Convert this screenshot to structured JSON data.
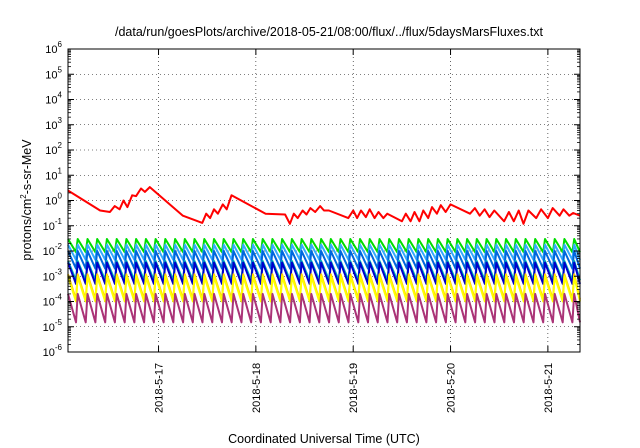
{
  "chart_data": {
    "type": "line",
    "title": "/data/run/goesPlots/archive/2018-05-21/08:00/flux/../flux/5daysMarsFluxes.txt",
    "xlabel": "Coordinated Universal Time (UTC)",
    "ylabel": {
      "base": "protons/cm",
      "sup": "2",
      "rest": "-s-sr-MeV"
    },
    "yscale": "log",
    "ylim": [
      1e-06,
      1000000.0
    ],
    "y_ticks": [
      {
        "base": "10",
        "exp": "-6",
        "value": 1e-06
      },
      {
        "base": "10",
        "exp": "-5",
        "value": 1e-05
      },
      {
        "base": "10",
        "exp": "-4",
        "value": 0.0001
      },
      {
        "base": "10",
        "exp": "-3",
        "value": 0.001
      },
      {
        "base": "10",
        "exp": "-2",
        "value": 0.01
      },
      {
        "base": "10",
        "exp": "-1",
        "value": 0.1
      },
      {
        "base": "10",
        "exp": "0",
        "value": 1
      },
      {
        "base": "10",
        "exp": "1",
        "value": 10.0
      },
      {
        "base": "10",
        "exp": "2",
        "value": 100.0
      },
      {
        "base": "10",
        "exp": "3",
        "value": 1000.0
      },
      {
        "base": "10",
        "exp": "4",
        "value": 10000.0
      },
      {
        "base": "10",
        "exp": "5",
        "value": 100000.0
      },
      {
        "base": "10",
        "exp": "6",
        "value": 1000000.0
      }
    ],
    "xlim_days": [
      16.07,
      21.33
    ],
    "x_ticks": [
      {
        "label": "2018-5-17",
        "day": 17
      },
      {
        "label": "2018-5-18",
        "day": 18
      },
      {
        "label": "2018-5-19",
        "day": 19
      },
      {
        "label": "2018-5-20",
        "day": 20
      },
      {
        "label": "2018-5-21",
        "day": 21
      }
    ],
    "grid": true,
    "legend": "none",
    "series": [
      {
        "color": "#ff0000",
        "style": "sawtooth",
        "points": [
          [
            16.07,
            2.5
          ],
          [
            16.4,
            0.4
          ],
          [
            16.5,
            0.35
          ],
          [
            16.55,
            0.6
          ],
          [
            16.6,
            0.45
          ],
          [
            16.64,
            1.0
          ],
          [
            16.68,
            0.55
          ],
          [
            16.73,
            1.6
          ],
          [
            16.77,
            1.5
          ],
          [
            16.82,
            3.0
          ],
          [
            16.86,
            2.2
          ],
          [
            16.91,
            3.4
          ],
          [
            17.25,
            0.25
          ],
          [
            17.45,
            0.13
          ],
          [
            17.49,
            0.3
          ],
          [
            17.53,
            0.2
          ],
          [
            17.57,
            0.45
          ],
          [
            17.61,
            0.3
          ],
          [
            17.66,
            0.7
          ],
          [
            17.7,
            0.45
          ],
          [
            17.75,
            1.6
          ],
          [
            18.1,
            0.3
          ],
          [
            18.3,
            0.28
          ],
          [
            18.35,
            0.12
          ],
          [
            18.39,
            0.3
          ],
          [
            18.43,
            0.2
          ],
          [
            18.48,
            0.4
          ],
          [
            18.52,
            0.28
          ],
          [
            18.56,
            0.5
          ],
          [
            18.61,
            0.35
          ],
          [
            18.66,
            0.6
          ],
          [
            18.7,
            0.4
          ],
          [
            18.75,
            0.4
          ],
          [
            18.95,
            0.2
          ],
          [
            19.0,
            0.4
          ],
          [
            19.04,
            0.2
          ],
          [
            19.08,
            0.4
          ],
          [
            19.13,
            0.22
          ],
          [
            19.17,
            0.45
          ],
          [
            19.22,
            0.2
          ],
          [
            19.26,
            0.35
          ],
          [
            19.31,
            0.2
          ],
          [
            19.35,
            0.3
          ],
          [
            19.5,
            0.15
          ],
          [
            19.54,
            0.3
          ],
          [
            19.59,
            0.15
          ],
          [
            19.63,
            0.35
          ],
          [
            19.68,
            0.15
          ],
          [
            19.72,
            0.4
          ],
          [
            19.77,
            0.2
          ],
          [
            19.81,
            0.55
          ],
          [
            19.86,
            0.3
          ],
          [
            19.9,
            0.65
          ],
          [
            19.95,
            0.35
          ],
          [
            20.0,
            0.7
          ],
          [
            20.2,
            0.3
          ],
          [
            20.25,
            0.5
          ],
          [
            20.3,
            0.25
          ],
          [
            20.35,
            0.45
          ],
          [
            20.4,
            0.22
          ],
          [
            20.45,
            0.4
          ],
          [
            20.55,
            0.15
          ],
          [
            20.6,
            0.35
          ],
          [
            20.65,
            0.15
          ],
          [
            20.7,
            0.4
          ],
          [
            20.75,
            0.12
          ],
          [
            20.8,
            0.4
          ],
          [
            20.88,
            0.2
          ],
          [
            20.93,
            0.45
          ],
          [
            21.0,
            0.2
          ],
          [
            21.05,
            0.5
          ],
          [
            21.12,
            0.25
          ],
          [
            21.16,
            0.45
          ],
          [
            21.22,
            0.25
          ],
          [
            21.26,
            0.32
          ],
          [
            21.33,
            0.25
          ]
        ]
      },
      {
        "color": "#00dd00",
        "style": "sawtooth",
        "high": 0.03,
        "low": 0.009
      },
      {
        "color": "#33aaff",
        "style": "sawtooth",
        "high": 0.018,
        "low": 0.0045
      },
      {
        "color": "#0066dd",
        "style": "sawtooth",
        "high": 0.01,
        "low": 0.002
      },
      {
        "color": "#00bbbb",
        "style": "sawtooth",
        "high": 0.004,
        "low": 0.0007
      },
      {
        "color": "#0000cc",
        "style": "sawtooth",
        "high": 0.0035,
        "low": 0.0005
      },
      {
        "color": "#ffcc00",
        "style": "sawtooth",
        "high": 0.0012,
        "low": 0.00012
      },
      {
        "color": "#ffff00",
        "style": "sawtooth",
        "high": 0.001,
        "low": 0.0001
      },
      {
        "color": "#aa3377",
        "style": "sawtooth",
        "high": 0.0002,
        "low": 1.5e-05
      }
    ],
    "sawtooth_period_days": 0.1
  }
}
